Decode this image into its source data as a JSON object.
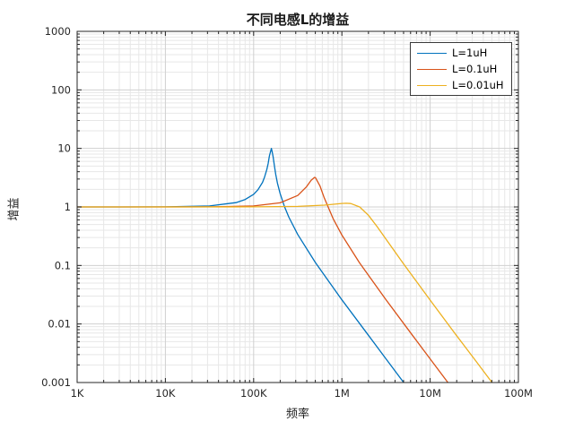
{
  "chart_data": {
    "type": "line",
    "title": "不同电感L的增益",
    "xlabel": "频率",
    "ylabel": "增益",
    "x_scale": "log",
    "y_scale": "log",
    "xlim": [
      1000,
      100000000
    ],
    "ylim": [
      0.001,
      1000
    ],
    "grid": "major+minor",
    "legend_position": "top-right",
    "x_ticks": [
      {
        "value": 1000,
        "label": "1K"
      },
      {
        "value": 10000,
        "label": "10K"
      },
      {
        "value": 100000,
        "label": "100K"
      },
      {
        "value": 1000000,
        "label": "1M"
      },
      {
        "value": 10000000,
        "label": "10M"
      },
      {
        "value": 100000000,
        "label": "100M"
      }
    ],
    "y_ticks": [
      {
        "value": 1000,
        "label": "1000"
      },
      {
        "value": 100,
        "label": "100"
      },
      {
        "value": 10,
        "label": "10"
      },
      {
        "value": 1,
        "label": "1"
      },
      {
        "value": 0.1,
        "label": "0.1"
      },
      {
        "value": 0.01,
        "label": "0.01"
      },
      {
        "value": 0.001,
        "label": "0.001"
      }
    ],
    "series": [
      {
        "name": "L=1uH",
        "color": "#0072BD",
        "resonance_hz": 159000,
        "peak_gain": 10,
        "points": [
          [
            1000,
            1.0
          ],
          [
            3162,
            1.0
          ],
          [
            10000,
            1.004
          ],
          [
            31600,
            1.041
          ],
          [
            63100,
            1.186
          ],
          [
            79400,
            1.329
          ],
          [
            100000,
            1.646
          ],
          [
            112000,
            1.965
          ],
          [
            126000,
            2.63
          ],
          [
            133000,
            3.24
          ],
          [
            141000,
            4.37
          ],
          [
            146000,
            5.52
          ],
          [
            151000,
            7.45
          ],
          [
            159000,
            10.0
          ],
          [
            162000,
            8.87
          ],
          [
            166000,
            7.22
          ],
          [
            172000,
            5.0
          ],
          [
            178000,
            3.62
          ],
          [
            186000,
            2.56
          ],
          [
            199500,
            1.7
          ],
          [
            224000,
            1.004
          ],
          [
            251000,
            0.666
          ],
          [
            316000,
            0.338
          ],
          [
            501000,
            0.112
          ],
          [
            1000000,
            0.0259
          ],
          [
            2000000,
            0.0064
          ],
          [
            3160000,
            0.00254
          ],
          [
            5010000,
            0.001
          ]
        ]
      },
      {
        "name": "L=0.1uH",
        "color": "#D95319",
        "resonance_hz": 503000,
        "peak_gain": 3.2,
        "points": [
          [
            1000,
            1.0
          ],
          [
            10000,
            1.0
          ],
          [
            31600,
            1.004
          ],
          [
            100000,
            1.039
          ],
          [
            200000,
            1.175
          ],
          [
            316000,
            1.569
          ],
          [
            398000,
            2.22
          ],
          [
            448000,
            2.86
          ],
          [
            490000,
            3.2
          ],
          [
            503000,
            3.16
          ],
          [
            563000,
            2.3
          ],
          [
            631000,
            1.433
          ],
          [
            794000,
            0.636
          ],
          [
            1000000,
            0.331
          ],
          [
            1580000,
            0.112
          ],
          [
            3160000,
            0.026
          ],
          [
            6310000,
            0.0064
          ],
          [
            10000000,
            0.00254
          ],
          [
            15900000,
            0.001
          ]
        ]
      },
      {
        "name": "L=0.01uH",
        "color": "#EDB120",
        "resonance_hz": 1590000,
        "peak_gain": 1.155,
        "points": [
          [
            1000,
            1.0
          ],
          [
            100000,
            1.002
          ],
          [
            316000,
            1.02
          ],
          [
            631000,
            1.074
          ],
          [
            1000000,
            1.146
          ],
          [
            1120000,
            1.155
          ],
          [
            1260000,
            1.142
          ],
          [
            1590000,
            1.0
          ],
          [
            2000000,
            0.721
          ],
          [
            2510000,
            0.46
          ],
          [
            3160000,
            0.281
          ],
          [
            5010000,
            0.106
          ],
          [
            10000000,
            0.0256
          ],
          [
            20000000,
            0.0063
          ],
          [
            31600000,
            0.00254
          ],
          [
            50300000,
            0.001
          ]
        ]
      }
    ]
  },
  "style": {
    "axis_color": "#262626",
    "major_grid_color": "#d0d0d0",
    "minor_grid_color": "#e7e7e7",
    "tick_label_color": "#262626",
    "background": "#ffffff"
  }
}
